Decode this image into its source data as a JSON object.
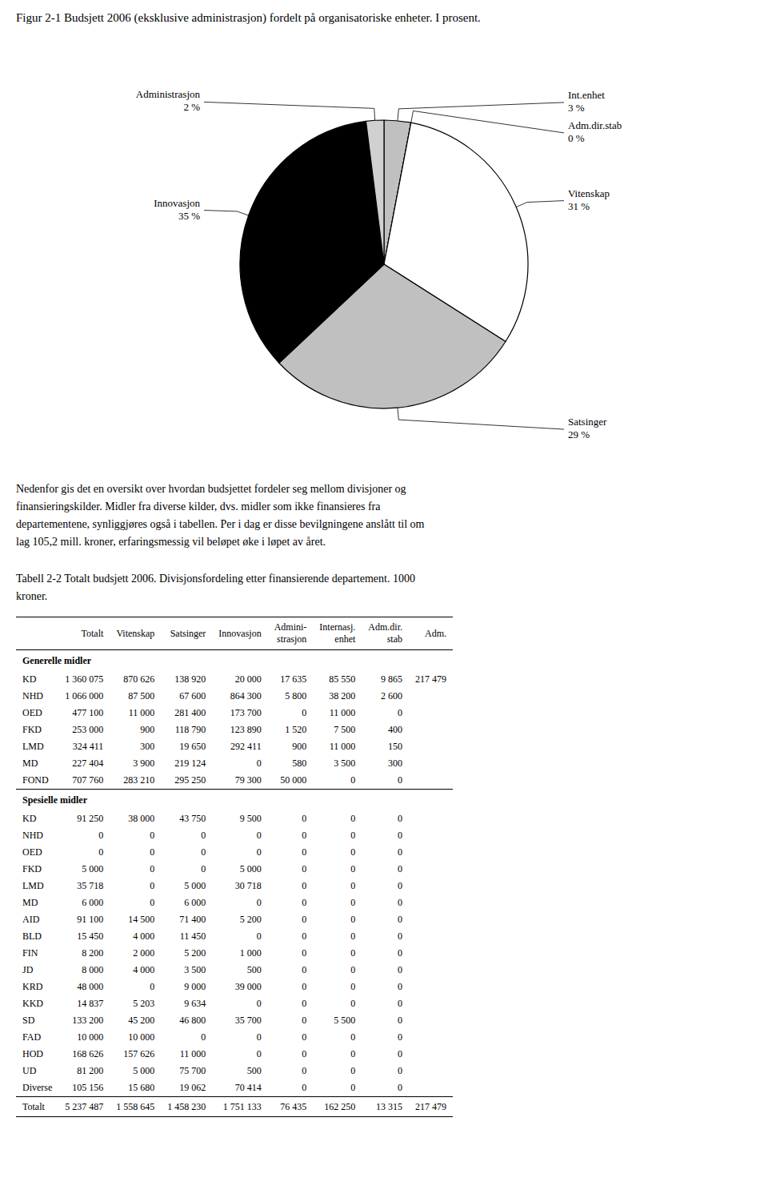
{
  "chart_data": {
    "type": "pie",
    "title": "Figur 2-1 Budsjett 2006 (eksklusive administrasjon) fordelt på organisatoriske enheter. I prosent.",
    "categories": [
      "Int.enhet",
      "Adm.dir.stab",
      "Vitenskap",
      "Satsinger",
      "Innovasjon",
      "Administrasjon"
    ],
    "values": [
      3,
      0,
      31,
      29,
      35,
      2
    ],
    "value_labels": [
      "3 %",
      "0 %",
      "31 %",
      "29 %",
      "35 %",
      "2 %"
    ],
    "colors": [
      "#c0c0c0",
      "#ffffff",
      "#ffffff",
      "#c0c0c0",
      "#000000",
      "#d0d0d0"
    ],
    "data_labels": true
  },
  "body_text": [
    "Nedenfor gis det en oversikt over hvordan budsjettet fordeler seg mellom divisjoner og",
    "finansieringskilder. Midler fra diverse kilder, dvs. midler som ikke finansieres fra",
    "departementene, synliggjøres også i tabellen. Per i dag er disse bevilgningene anslått til om",
    "lag 105,2 mill. kroner, erfaringsmessig vil beløpet øke i løpet av året."
  ],
  "table": {
    "title": [
      "Tabell 2-2 Totalt budsjett 2006. Divisjonsfordeling etter finansierende departement. 1000",
      "kroner."
    ],
    "header_rows": [
      [
        null,
        "Totalt",
        "Vitenskap",
        "Satsinger",
        "Innovasjon",
        "Admini-",
        "Internasj.",
        "Adm.dir.",
        "Adm."
      ],
      [
        null,
        null,
        null,
        null,
        null,
        "strasjon",
        "enhet",
        "stab",
        null
      ]
    ],
    "sections": [
      {
        "label": "Generelle midler",
        "rows": [
          [
            "KD",
            "1 360 075",
            "870 626",
            "138 920",
            "20 000",
            "17 635",
            "85 550",
            "9 865",
            "217 479"
          ],
          [
            "NHD",
            "1 066 000",
            "87 500",
            "67 600",
            "864 300",
            "5 800",
            "38 200",
            "2 600",
            null
          ],
          [
            "OED",
            "477 100",
            "11 000",
            "281 400",
            "173 700",
            "0",
            "11 000",
            "0",
            null
          ],
          [
            "FKD",
            "253 000",
            "900",
            "118 790",
            "123 890",
            "1 520",
            "7 500",
            "400",
            null
          ],
          [
            "LMD",
            "324 411",
            "300",
            "19 650",
            "292 411",
            "900",
            "11 000",
            "150",
            null
          ],
          [
            "MD",
            "227 404",
            "3 900",
            "219 124",
            "0",
            "580",
            "3 500",
            "300",
            null
          ],
          [
            "FOND",
            "707 760",
            "283 210",
            "295 250",
            "79 300",
            "50 000",
            "0",
            "0",
            null
          ]
        ]
      },
      {
        "label": "Spesielle midler",
        "rows": [
          [
            "KD",
            "91 250",
            "38 000",
            "43 750",
            "9 500",
            "0",
            "0",
            "0",
            null
          ],
          [
            "NHD",
            "0",
            "0",
            "0",
            "0",
            "0",
            "0",
            "0",
            null
          ],
          [
            "OED",
            "0",
            "0",
            "0",
            "0",
            "0",
            "0",
            "0",
            null
          ],
          [
            "FKD",
            "5 000",
            "0",
            "0",
            "5 000",
            "0",
            "0",
            "0",
            null
          ],
          [
            "LMD",
            "35 718",
            "0",
            "5 000",
            "30 718",
            "0",
            "0",
            "0",
            null
          ],
          [
            "MD",
            "6 000",
            "0",
            "6 000",
            "0",
            "0",
            "0",
            "0",
            null
          ],
          [
            "AID",
            "91 100",
            "14 500",
            "71 400",
            "5 200",
            "0",
            "0",
            "0",
            null
          ],
          [
            "BLD",
            "15 450",
            "4 000",
            "11 450",
            "0",
            "0",
            "0",
            "0",
            null
          ],
          [
            "FIN",
            "8 200",
            "2 000",
            "5 200",
            "1 000",
            "0",
            "0",
            "0",
            null
          ],
          [
            "JD",
            "8 000",
            "4 000",
            "3 500",
            "500",
            "0",
            "0",
            "0",
            null
          ],
          [
            "KRD",
            "48 000",
            "0",
            "9 000",
            "39 000",
            "0",
            "0",
            "0",
            null
          ],
          [
            "KKD",
            "14 837",
            "5 203",
            "9 634",
            "0",
            "0",
            "0",
            "0",
            null
          ],
          [
            "SD",
            "133 200",
            "45 200",
            "46 800",
            "35 700",
            "0",
            "5 500",
            "0",
            null
          ],
          [
            "FAD",
            "10 000",
            "10 000",
            "0",
            "0",
            "0",
            "0",
            "0",
            null
          ],
          [
            "HOD",
            "168 626",
            "157 626",
            "11 000",
            "0",
            "0",
            "0",
            "0",
            null
          ],
          [
            "UD",
            "81 200",
            "5 000",
            "75 700",
            "500",
            "0",
            "0",
            "0",
            null
          ],
          [
            "Diverse",
            "105 156",
            "15 680",
            "19 062",
            "70 414",
            "0",
            "0",
            "0",
            null
          ]
        ]
      }
    ],
    "total_row": [
      "Totalt",
      "5 237 487",
      "1 558 645",
      "1 458 230",
      "1 751 133",
      "76 435",
      "162 250",
      "13 315",
      "217 479"
    ]
  }
}
